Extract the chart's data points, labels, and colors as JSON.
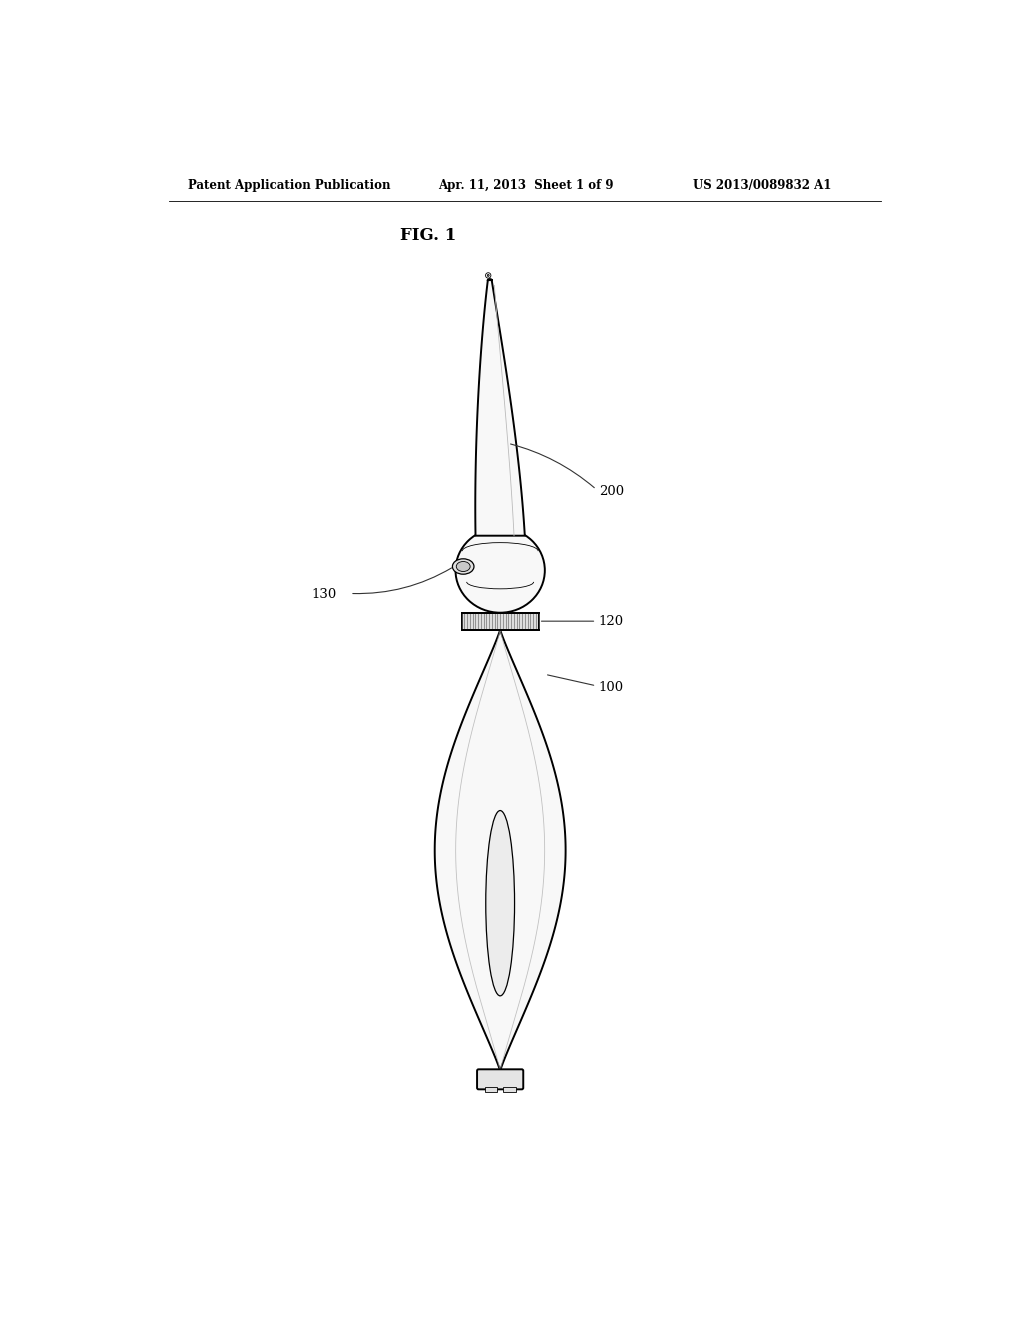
{
  "background_color": "#ffffff",
  "header_left": "Patent Application Publication",
  "header_center": "Apr. 11, 2013  Sheet 1 of 9",
  "header_right": "US 2013/0089832 A1",
  "fig_label": "FIG. 1",
  "label_200": "200",
  "label_130": "130",
  "label_120": "120",
  "label_100": "100",
  "line_color": "#000000",
  "fill_light": "#f8f8f8",
  "fill_mid": "#e8e8e8",
  "fill_dark": "#cccccc"
}
